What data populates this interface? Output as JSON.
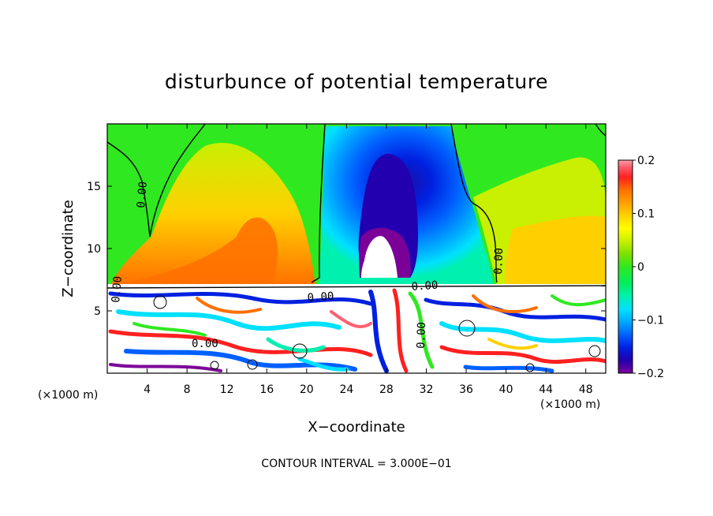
{
  "chart_data": {
    "type": "heatmap",
    "title": "disturbunce of potential temperature",
    "xlabel": "X−coordinate",
    "ylabel": "Z−coordinate",
    "x_unit": "(×1000 m)",
    "z_unit": "(×1000 m)",
    "xlim": [
      0,
      50
    ],
    "ylim": [
      0,
      20
    ],
    "x_ticks": [
      4,
      8,
      12,
      16,
      20,
      24,
      28,
      32,
      36,
      40,
      44,
      48
    ],
    "x_tick_labels": [
      "4",
      "8",
      "12",
      "16",
      "20",
      "24",
      "28",
      "32",
      "36",
      "40",
      "44",
      "48"
    ],
    "y_ticks": [
      5,
      10,
      15
    ],
    "y_tick_labels": [
      "5",
      "10",
      "15"
    ],
    "colorbar": {
      "min": -0.2,
      "max": 0.2,
      "ticks": [
        0.2,
        0.1,
        0,
        -0.1,
        -0.2
      ],
      "tick_labels": [
        "0.2",
        "0.1",
        "0",
        "−0.1",
        "−0.2"
      ],
      "colors": [
        "#7b0098",
        "#2200b0",
        "#0020e0",
        "#0060ff",
        "#00a8ff",
        "#00e0ff",
        "#00f0b0",
        "#00ee60",
        "#30e820",
        "#7ee000",
        "#c8f000",
        "#ffff00",
        "#ffd000",
        "#ffa000",
        "#ff7000",
        "#ff2020",
        "#ff6070",
        "#ffa0a8"
      ]
    },
    "contour_labels": [
      "0.00",
      "0.00",
      "0.00",
      "0.00",
      "0.00",
      "0.00",
      "0.00"
    ],
    "annotation": "CONTOUR INTERVAL = 3.000E−01"
  }
}
